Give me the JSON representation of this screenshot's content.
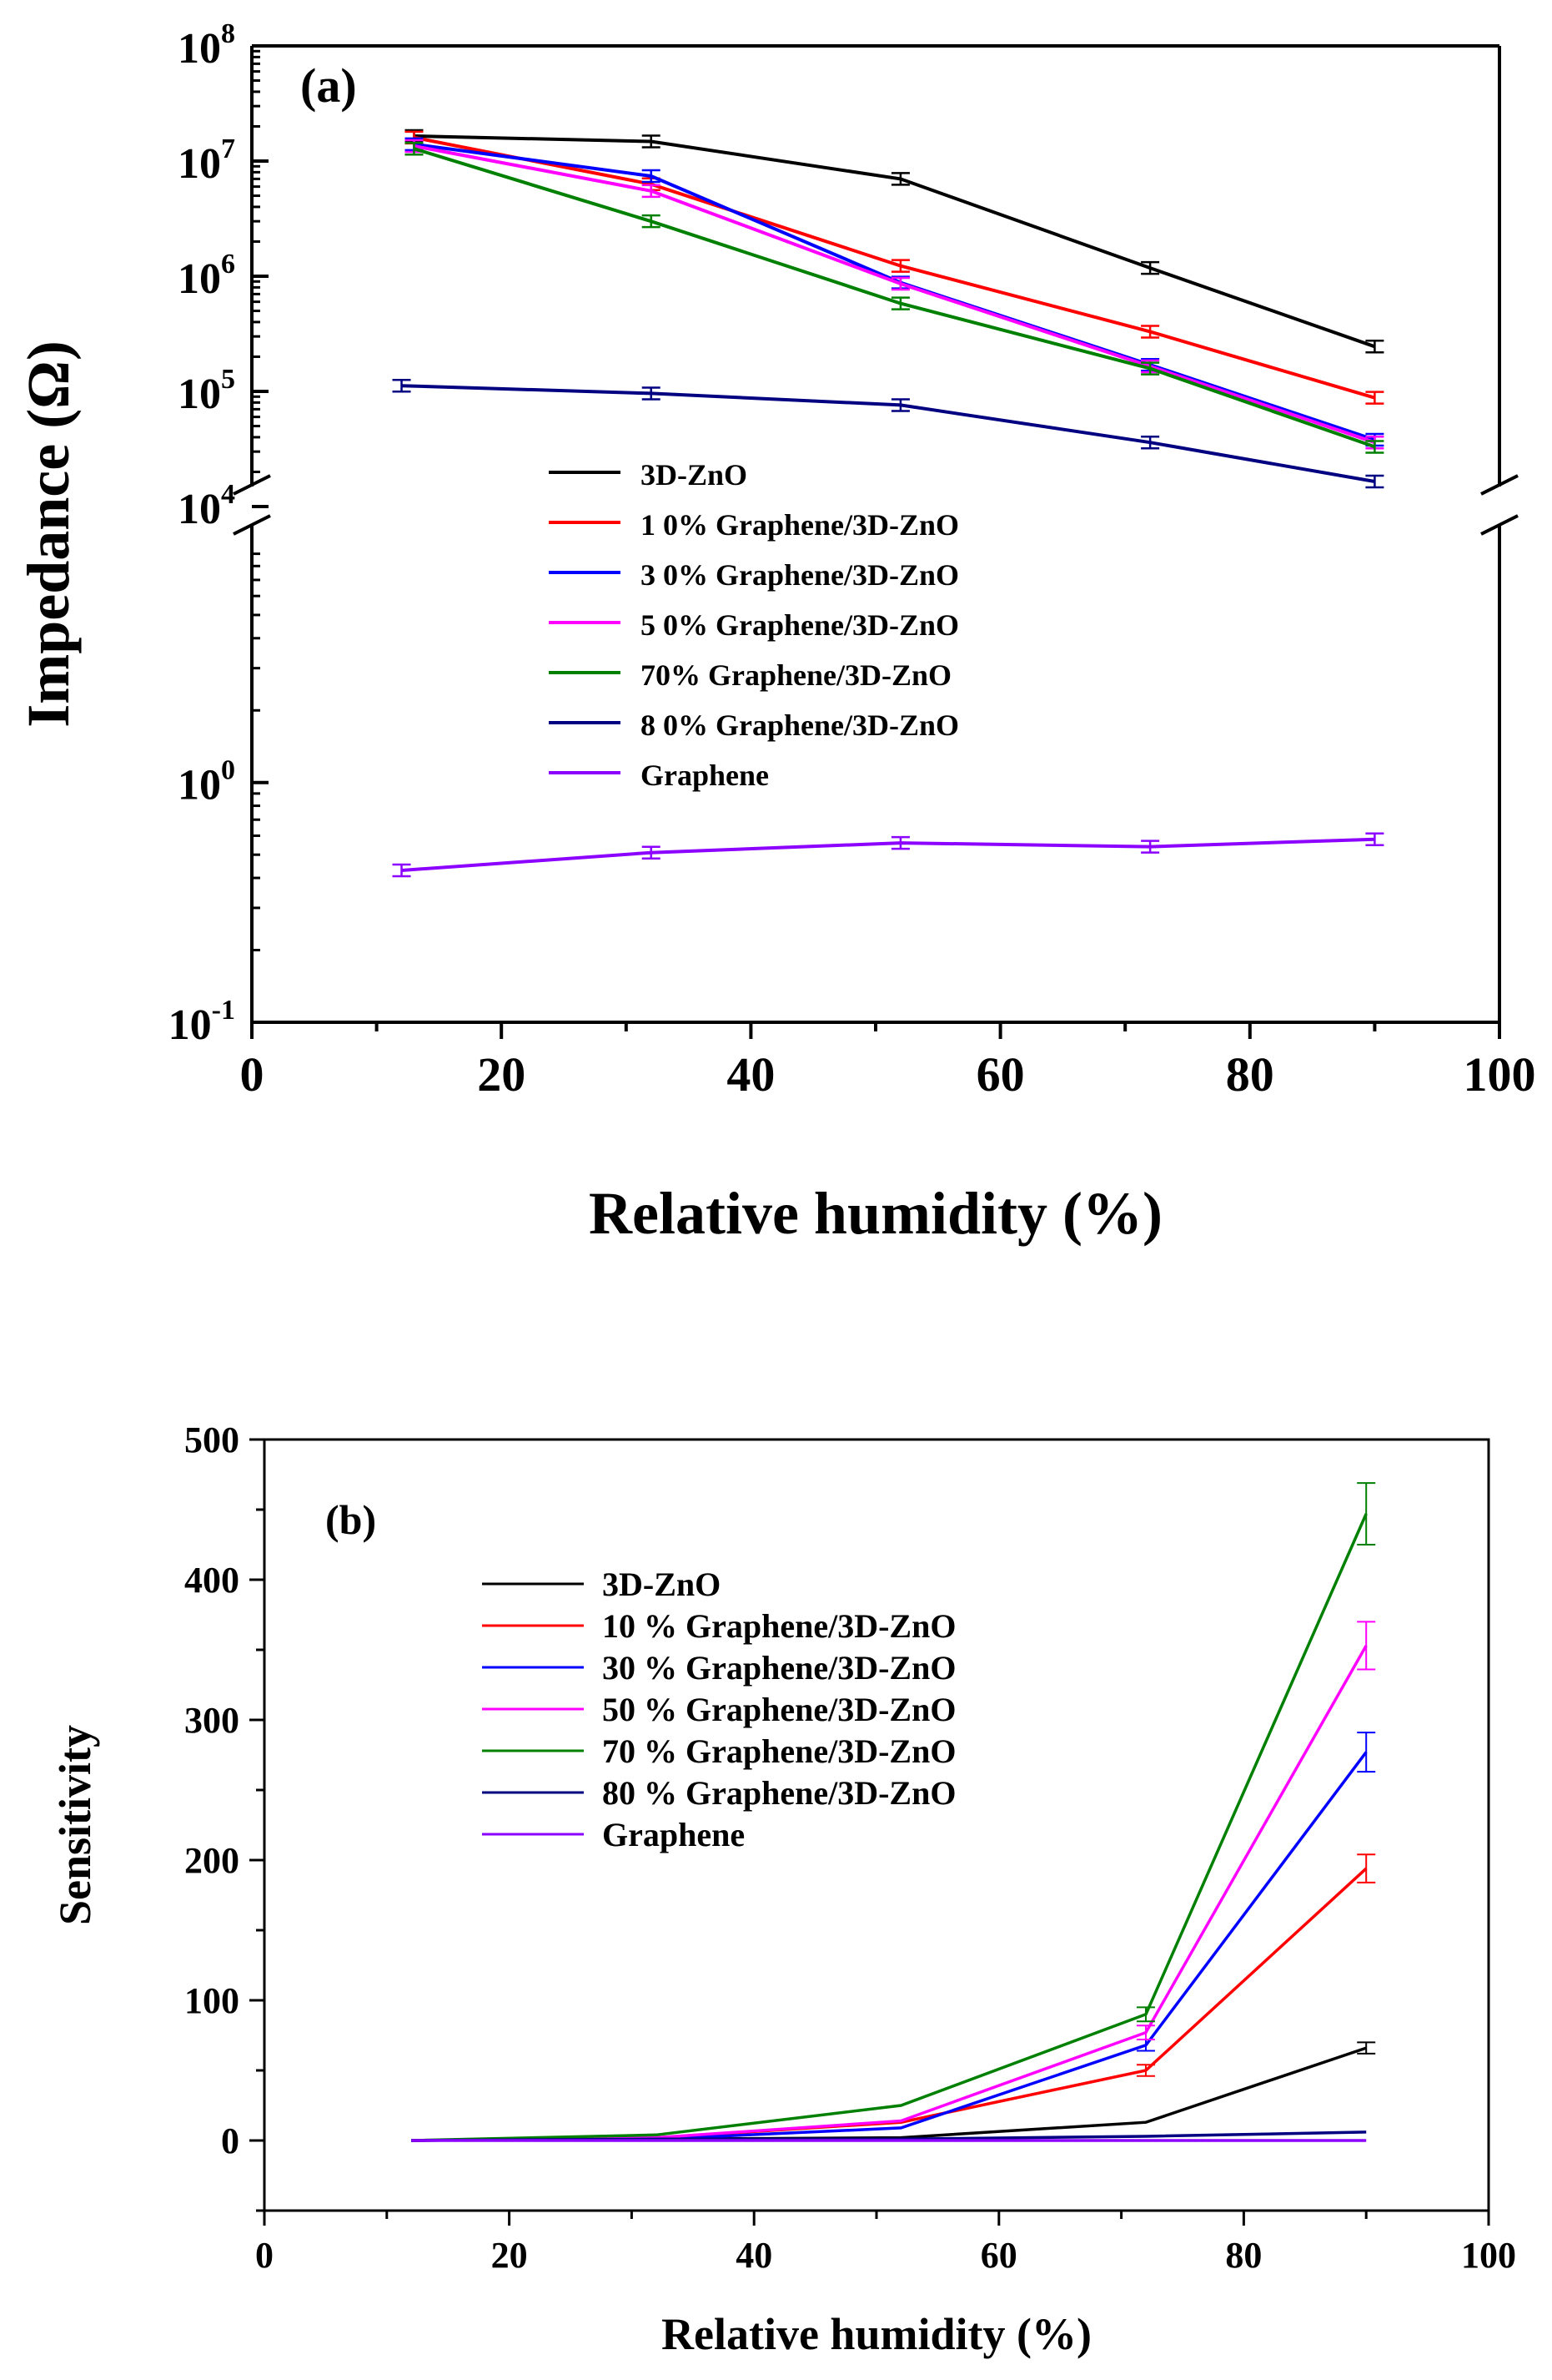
{
  "chart_data": [
    {
      "id": "a",
      "type": "line",
      "panel_label": "(a)",
      "xlabel": "Relative humidity (%)",
      "ylabel": "Impedance  (Ω)",
      "yscale": "log",
      "axis_break": true,
      "xlim": [
        0,
        100
      ],
      "x_ticks": [
        "0",
        "20",
        "40",
        "60",
        "80",
        "100"
      ],
      "y_ticks_upper": [
        {
          "base": "10",
          "exp": "4"
        },
        {
          "base": "10",
          "exp": "5"
        },
        {
          "base": "10",
          "exp": "6"
        },
        {
          "base": "10",
          "exp": "7"
        },
        {
          "base": "10",
          "exp": "8"
        }
      ],
      "y_ticks_lower": [
        {
          "base": "10",
          "exp": "-1"
        },
        {
          "base": "10",
          "exp": "0"
        }
      ],
      "legend_position": "center-left",
      "series": [
        {
          "name": "3D-ZnO",
          "color": "#000000",
          "x": [
            13,
            32,
            52,
            72,
            90
          ],
          "values": [
            16500000,
            14800000,
            7000000,
            1180000,
            245000
          ]
        },
        {
          "name": "1 0% Graphene/3D-ZnO",
          "color": "#ff0000",
          "x": [
            13,
            32,
            52,
            72,
            90
          ],
          "values": [
            16000000,
            6300000,
            1230000,
            330000,
            88000
          ]
        },
        {
          "name": "3 0% Graphene/3D-ZnO",
          "color": "#0000ff",
          "x": [
            13,
            32,
            52,
            72,
            90
          ],
          "values": [
            14000000,
            7400000,
            880000,
            170000,
            38000
          ]
        },
        {
          "name": "5 0% Graphene/3D-ZnO",
          "color": "#ff00ff",
          "x": [
            13,
            32,
            52,
            72,
            90
          ],
          "values": [
            13500000,
            5500000,
            860000,
            165000,
            36000
          ]
        },
        {
          "name": "70% Graphene/3D-ZnO",
          "color": "#008000",
          "x": [
            13,
            32,
            52,
            72,
            90
          ],
          "values": [
            12800000,
            3000000,
            580000,
            158000,
            33000
          ]
        },
        {
          "name": "8 0% Graphene/3D-ZnO",
          "color": "#000080",
          "x": [
            12,
            32,
            52,
            72,
            90
          ],
          "values": [
            112000,
            96000,
            76000,
            36000,
            16500
          ]
        },
        {
          "name": "Graphene",
          "color": "#8b00ff",
          "x": [
            12,
            32,
            52,
            72,
            90
          ],
          "values": [
            0.43,
            0.51,
            0.56,
            0.54,
            0.58
          ]
        }
      ]
    },
    {
      "id": "b",
      "type": "line",
      "panel_label": "(b)",
      "xlabel": "Relative humidity (%)",
      "ylabel": "Sensitivity",
      "xlim": [
        0,
        100
      ],
      "ylim": [
        -50,
        500
      ],
      "x_ticks": [
        "0",
        "20",
        "40",
        "60",
        "80",
        "100"
      ],
      "y_ticks": [
        "0",
        "100",
        "200",
        "300",
        "400",
        "500"
      ],
      "legend_position": "upper-left",
      "series": [
        {
          "name": "3D-ZnO",
          "color": "#000000",
          "x": [
            12,
            32,
            52,
            72,
            90
          ],
          "values": [
            0,
            1,
            2,
            13,
            66
          ],
          "err": [
            0,
            0,
            0,
            0,
            4
          ]
        },
        {
          "name": "10 % Graphene/3D-ZnO",
          "color": "#ff0000",
          "x": [
            12,
            32,
            52,
            72,
            90
          ],
          "values": [
            0,
            2,
            13,
            50,
            194
          ],
          "err": [
            0,
            0,
            0,
            4,
            10
          ]
        },
        {
          "name": "30 % Graphene/3D-ZnO",
          "color": "#0000ff",
          "x": [
            12,
            32,
            52,
            72,
            90
          ],
          "values": [
            0,
            1,
            9,
            68,
            277
          ],
          "err": [
            0,
            0,
            0,
            4,
            14
          ]
        },
        {
          "name": "50 % Graphene/3D-ZnO",
          "color": "#ff00ff",
          "x": [
            12,
            32,
            52,
            72,
            90
          ],
          "values": [
            0,
            2,
            14,
            77,
            353
          ],
          "err": [
            0,
            0,
            0,
            5,
            17
          ]
        },
        {
          "name": "70 % Graphene/3D-ZnO",
          "color": "#008000",
          "x": [
            12,
            32,
            52,
            72,
            90
          ],
          "values": [
            0,
            4,
            25,
            90,
            447
          ],
          "err": [
            0,
            0,
            0,
            5,
            22
          ]
        },
        {
          "name": "80 % Graphene/3D-ZnO",
          "color": "#000080",
          "x": [
            12,
            32,
            52,
            72,
            90
          ],
          "values": [
            0,
            1,
            1,
            3,
            6
          ],
          "err": [
            0,
            0,
            0,
            0,
            0
          ]
        },
        {
          "name": "Graphene",
          "color": "#8b00ff",
          "x": [
            12,
            32,
            52,
            72,
            90
          ],
          "values": [
            0,
            0,
            0,
            0,
            0
          ],
          "err": [
            0,
            0,
            0,
            0,
            0
          ]
        }
      ]
    }
  ]
}
